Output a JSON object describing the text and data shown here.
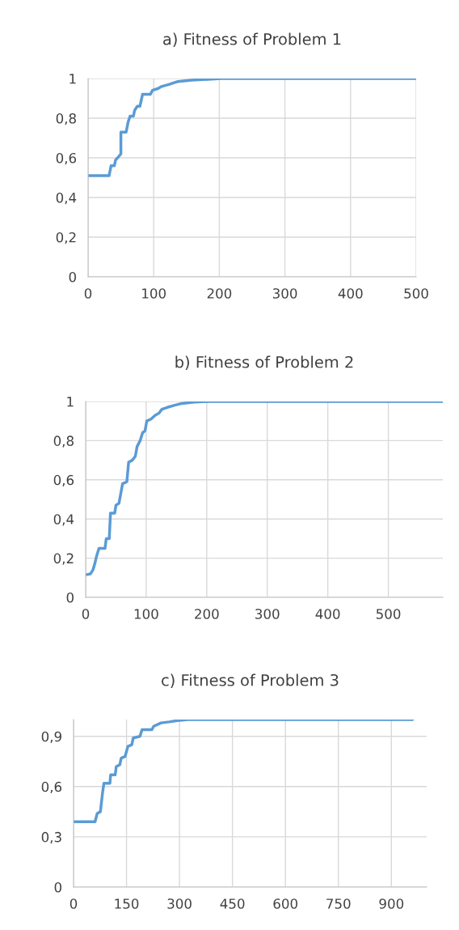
{
  "chart_data": [
    {
      "type": "line",
      "title": "a) Fitness of Problem 1",
      "xlim": [
        0,
        500
      ],
      "xticks": [
        0,
        100,
        200,
        300,
        400,
        500
      ],
      "ylim": [
        0,
        1
      ],
      "yticks": [
        0,
        {
          "value": 0.2,
          "label": "0,2"
        },
        {
          "value": 0.4,
          "label": "0,4"
        },
        {
          "value": 0.6,
          "label": "0,6"
        },
        {
          "value": 0.8,
          "label": "0,8"
        },
        1
      ],
      "grid": true,
      "legend": false,
      "series": [
        {
          "color": "#5b9bd5",
          "x": [
            0,
            32,
            35,
            40,
            42,
            45,
            50,
            50,
            58,
            61,
            64,
            69,
            71,
            75,
            79,
            83,
            95,
            98,
            107,
            112,
            123,
            137,
            158,
            183,
            203,
            500
          ],
          "values": [
            0.51,
            0.51,
            0.56,
            0.56,
            0.59,
            0.6,
            0.62,
            0.73,
            0.73,
            0.78,
            0.81,
            0.81,
            0.84,
            0.86,
            0.86,
            0.92,
            0.92,
            0.94,
            0.95,
            0.96,
            0.97,
            0.985,
            0.992,
            0.996,
            1,
            1
          ]
        }
      ]
    },
    {
      "type": "line",
      "title": "b) Fitness of Problem 2",
      "xlim": [
        0,
        590
      ],
      "xticks": [
        0,
        100,
        200,
        300,
        400,
        500
      ],
      "ylim": [
        0,
        1
      ],
      "yticks": [
        0,
        {
          "value": 0.2,
          "label": "0,2"
        },
        {
          "value": 0.4,
          "label": "0,4"
        },
        {
          "value": 0.6,
          "label": "0,6"
        },
        {
          "value": 0.8,
          "label": "0,8"
        },
        1
      ],
      "grid": true,
      "legend": false,
      "series": [
        {
          "color": "#5b9bd5",
          "x": [
            0,
            8,
            12,
            15,
            18,
            22,
            32,
            34,
            39,
            41,
            48,
            50,
            55,
            58,
            61,
            68,
            71,
            77,
            82,
            85,
            90,
            94,
            98,
            101,
            108,
            115,
            121,
            126,
            135,
            146,
            159,
            179,
            202,
            590
          ],
          "values": [
            0.115,
            0.12,
            0.14,
            0.17,
            0.21,
            0.25,
            0.25,
            0.3,
            0.3,
            0.43,
            0.43,
            0.47,
            0.48,
            0.53,
            0.58,
            0.59,
            0.69,
            0.7,
            0.72,
            0.77,
            0.8,
            0.84,
            0.85,
            0.9,
            0.91,
            0.93,
            0.94,
            0.96,
            0.97,
            0.98,
            0.99,
            0.997,
            1,
            1
          ]
        }
      ]
    },
    {
      "type": "line",
      "title": "c) Fitness of Problem 3",
      "xlim": [
        0,
        1000
      ],
      "xticks": [
        0,
        150,
        300,
        450,
        600,
        750,
        900
      ],
      "ylim": [
        0,
        1
      ],
      "yticks": [
        0,
        {
          "value": 0.3,
          "label": "0,3"
        },
        {
          "value": 0.6,
          "label": "0,6"
        },
        {
          "value": 0.9,
          "label": "0,9"
        }
      ],
      "grid": true,
      "legend": false,
      "series": [
        {
          "color": "#5b9bd5",
          "x": [
            0,
            61,
            67,
            76,
            82,
            86,
            103,
            105,
            118,
            121,
            131,
            135,
            146,
            154,
            165,
            169,
            188,
            194,
            222,
            227,
            248,
            271,
            294,
            324,
            960
          ],
          "values": [
            0.39,
            0.39,
            0.44,
            0.45,
            0.56,
            0.62,
            0.62,
            0.67,
            0.67,
            0.72,
            0.73,
            0.77,
            0.78,
            0.84,
            0.85,
            0.89,
            0.9,
            0.94,
            0.94,
            0.96,
            0.98,
            0.986,
            0.994,
            1,
            1
          ]
        }
      ]
    }
  ]
}
